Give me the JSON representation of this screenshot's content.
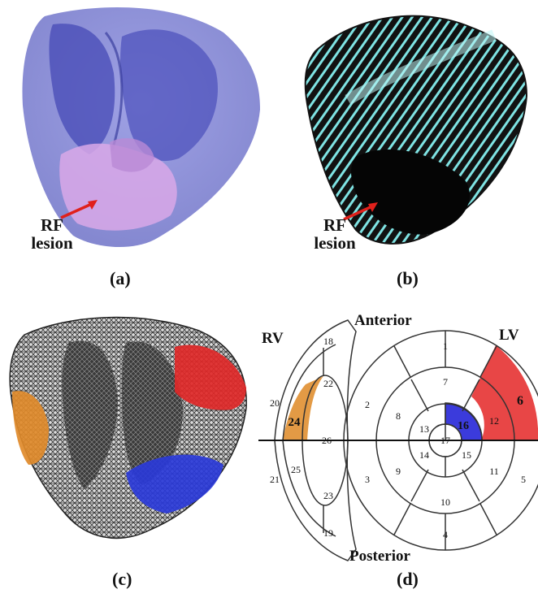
{
  "panels": {
    "a": {
      "caption": "(a)",
      "lesion_label_line1": "RF",
      "lesion_label_line2": "lesion"
    },
    "b": {
      "caption": "(b)",
      "lesion_label_line1": "RF",
      "lesion_label_line2": "lesion"
    },
    "c": {
      "caption": "(c)"
    },
    "d": {
      "caption": "(d)",
      "anterior": "Anterior",
      "posterior": "Posterior",
      "rv": "RV",
      "lv": "LV",
      "lv_segments": [
        "1",
        "2",
        "3",
        "4",
        "5",
        "6",
        "7",
        "8",
        "9",
        "10",
        "11",
        "12",
        "13",
        "14",
        "15",
        "16",
        "17"
      ],
      "rv_segments": [
        "18",
        "19",
        "20",
        "21",
        "22",
        "23",
        "24",
        "25",
        "26"
      ],
      "highlighted": {
        "6": "#e84646",
        "16": "#3b3bdc",
        "24": "#e39a45"
      }
    }
  },
  "colors": {
    "lesion_arrow": "#e0201b",
    "heart_blue": "#6a6dcc",
    "lesion_pink": "#d9a8e8"
  }
}
